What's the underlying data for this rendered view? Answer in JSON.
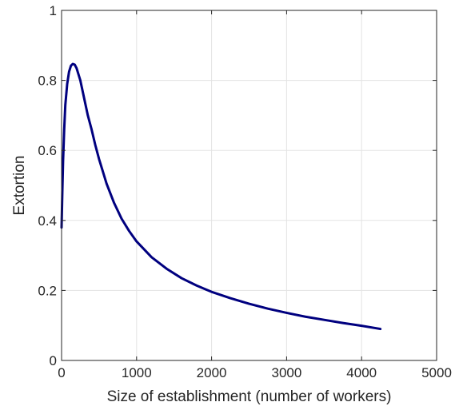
{
  "chart_data": {
    "type": "line",
    "title": "",
    "xlabel": "Size of establishment (number of workers)",
    "ylabel": "Extortion",
    "xlim": [
      0,
      5000
    ],
    "ylim": [
      0,
      1
    ],
    "x_ticks": [
      0,
      1000,
      2000,
      3000,
      4000,
      5000
    ],
    "x_tick_labels": [
      "0",
      "1000",
      "2000",
      "3000",
      "4000",
      "5000"
    ],
    "y_ticks": [
      0,
      0.2,
      0.4,
      0.6,
      0.8,
      1
    ],
    "y_tick_labels": [
      "0",
      "0.2",
      "0.4",
      "0.6",
      "0.8",
      "1"
    ],
    "grid": true,
    "legend": "none",
    "colors": {
      "line": "#00007f",
      "grid": "#e3e3e3",
      "axis": "#262626"
    },
    "series": [
      {
        "x": [
          0,
          10,
          20,
          35,
          50,
          75,
          100,
          125,
          150,
          175,
          200,
          250,
          300,
          350,
          400,
          450,
          500,
          600,
          700,
          800,
          900,
          1000,
          1200,
          1400,
          1600,
          1800,
          2000,
          2250,
          2500,
          2750,
          3000,
          3250,
          3500,
          3750,
          4000,
          4250
        ],
        "y": [
          0.38,
          0.48,
          0.57,
          0.66,
          0.73,
          0.79,
          0.825,
          0.842,
          0.847,
          0.845,
          0.835,
          0.8,
          0.75,
          0.7,
          0.66,
          0.615,
          0.575,
          0.505,
          0.45,
          0.405,
          0.37,
          0.34,
          0.295,
          0.262,
          0.235,
          0.214,
          0.196,
          0.178,
          0.162,
          0.148,
          0.136,
          0.125,
          0.116,
          0.107,
          0.099,
          0.09
        ]
      }
    ]
  }
}
